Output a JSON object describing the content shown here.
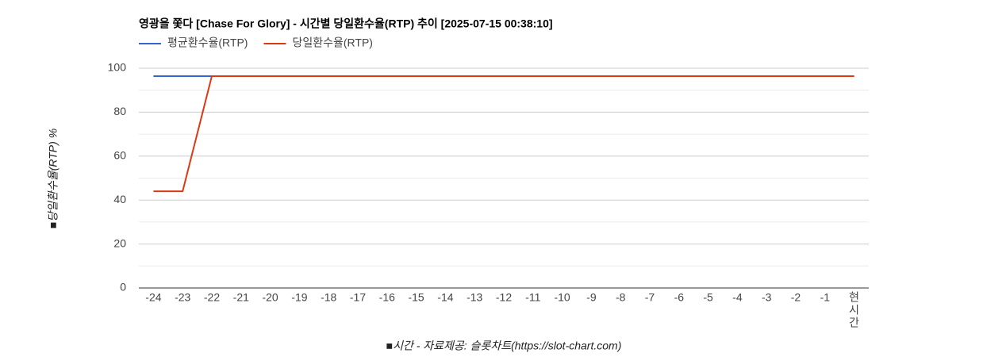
{
  "chart_data": {
    "type": "line",
    "title": "영광을 쫓다 [Chase For Glory] - 시간별 당일환수율(RTP) 추이 [2025-07-15 00:38:10]",
    "y_label": "■당일환수율(RTP) %",
    "x_label": "■시간 - 자료제공: 슬롯차트(https://slot-chart.com)",
    "categories": [
      "-24",
      "-23",
      "-22",
      "-21",
      "-20",
      "-19",
      "-18",
      "-17",
      "-16",
      "-15",
      "-14",
      "-13",
      "-12",
      "-11",
      "-10",
      "-9",
      "-8",
      "-7",
      "-6",
      "-5",
      "-4",
      "-3",
      "-2",
      "-1",
      "현시간"
    ],
    "series": [
      {
        "name": "평균환수율(RTP)",
        "color": "#3366cc",
        "values": [
          96.4,
          96.4,
          96.4,
          96.4,
          96.4,
          96.4,
          96.4,
          96.4,
          96.4,
          96.4,
          96.4,
          96.4,
          96.4,
          96.4,
          96.4,
          96.4,
          96.4,
          96.4,
          96.4,
          96.4,
          96.4,
          96.4,
          96.4,
          96.4,
          96.4
        ]
      },
      {
        "name": "당일환수율(RTP)",
        "color": "#dc3912",
        "values": [
          44,
          44,
          96.4,
          96.4,
          96.4,
          96.4,
          96.4,
          96.4,
          96.4,
          96.4,
          96.4,
          96.4,
          96.4,
          96.4,
          96.4,
          96.4,
          96.4,
          96.4,
          96.4,
          96.4,
          96.4,
          96.4,
          96.4,
          96.4,
          96.4
        ]
      }
    ],
    "ylim": [
      0,
      100
    ],
    "yticks": [
      0,
      20,
      40,
      60,
      80,
      100
    ],
    "minor_yticks": [
      10,
      30,
      50,
      70,
      90
    ],
    "grid": true,
    "legend": "top-left"
  }
}
